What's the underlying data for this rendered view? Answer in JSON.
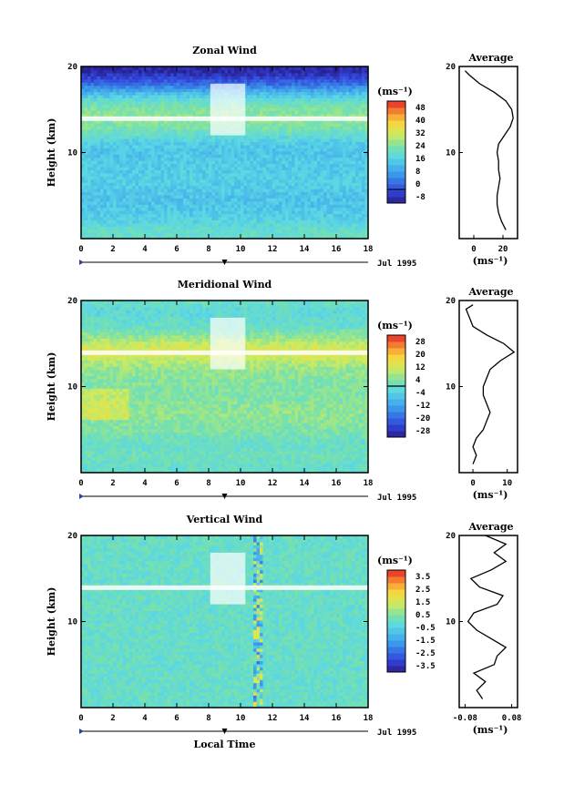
{
  "chart_data": [
    {
      "type": "heatmap",
      "title": "Zonal Wind",
      "ylabel": "Height (km)",
      "xlabel": "",
      "date_label": "Jul 1995",
      "unit_label": "(ms⁻¹)",
      "xlim": [
        0,
        18
      ],
      "ylim": [
        0,
        20
      ],
      "x_ticks": [
        "0",
        "2",
        "4",
        "6",
        "8",
        "10",
        "12",
        "14",
        "16",
        "18"
      ],
      "y_ticks": [
        "10",
        "20"
      ],
      "colorbar": {
        "min": -8,
        "max": 52,
        "labels": [
          "48",
          "40",
          "32",
          "24",
          "16",
          "8",
          "0",
          "-8"
        ],
        "zero_line": 0
      },
      "profile": {
        "title": "Average",
        "xlabel": "(ms⁻¹)",
        "xlim": [
          -10,
          30
        ],
        "x_ticks": [
          "0",
          "20"
        ],
        "y_ticks": [
          "10",
          "20"
        ],
        "heights": [
          1,
          2,
          3,
          4,
          5,
          6,
          7,
          8,
          9,
          10,
          11,
          12,
          13,
          14,
          15,
          16,
          17,
          18,
          19,
          19.5
        ],
        "values": [
          22,
          19,
          17,
          16,
          16,
          17,
          18,
          17,
          17,
          16,
          17,
          21,
          25,
          27,
          26,
          22,
          14,
          4,
          -3,
          -6
        ]
      }
    },
    {
      "type": "heatmap",
      "title": "Meridional Wind",
      "ylabel": "Height (km)",
      "xlabel": "",
      "date_label": "Jul 1995",
      "unit_label": "(ms⁻¹)",
      "xlim": [
        0,
        18
      ],
      "ylim": [
        0,
        20
      ],
      "x_ticks": [
        "0",
        "2",
        "4",
        "6",
        "8",
        "10",
        "12",
        "14",
        "16",
        "18"
      ],
      "y_ticks": [
        "10",
        "20"
      ],
      "colorbar": {
        "min": -28,
        "max": 28,
        "labels": [
          "28",
          "20",
          "12",
          "4",
          "-4",
          "-12",
          "-20",
          "-28"
        ],
        "zero_line": 0
      },
      "profile": {
        "title": "Average",
        "xlabel": "(ms⁻¹)",
        "xlim": [
          -4,
          13
        ],
        "x_ticks": [
          "0",
          "10"
        ],
        "y_ticks": [
          "10",
          "20"
        ],
        "heights": [
          1,
          2,
          3,
          4,
          5,
          6,
          7,
          8,
          9,
          10,
          11,
          12,
          13,
          14,
          15,
          16,
          17,
          18,
          19,
          19.5
        ],
        "values": [
          0,
          1,
          0,
          1,
          3,
          4,
          5,
          4,
          3,
          3,
          4,
          5,
          8,
          12,
          9,
          4,
          0,
          -1,
          -2,
          0
        ]
      }
    },
    {
      "type": "heatmap",
      "title": "Vertical Wind",
      "ylabel": "Height (km)",
      "xlabel": "Local Time",
      "date_label": "Jul 1995",
      "unit_label": "(ms⁻¹)",
      "xlim": [
        0,
        18
      ],
      "ylim": [
        0,
        20
      ],
      "x_ticks": [
        "0",
        "2",
        "4",
        "6",
        "8",
        "10",
        "12",
        "14",
        "16",
        "18"
      ],
      "y_ticks": [
        "10",
        "20"
      ],
      "colorbar": {
        "min": -4,
        "max": 4,
        "labels": [
          "3.5",
          "2.5",
          "1.5",
          "0.5",
          "-0.5",
          "-1.5",
          "-2.5",
          "-3.5"
        ],
        "zero_line": null
      },
      "profile": {
        "title": "Average",
        "xlabel": "(ms⁻¹)",
        "xlim": [
          -0.1,
          0.1
        ],
        "x_ticks": [
          "-0.08",
          "0.08"
        ],
        "y_ticks": [
          "10",
          "20"
        ],
        "heights": [
          1,
          2,
          3,
          4,
          5,
          6,
          7,
          8,
          9,
          10,
          11,
          12,
          13,
          14,
          15,
          16,
          17,
          18,
          19,
          20
        ],
        "values": [
          -0.02,
          -0.04,
          -0.01,
          -0.05,
          0.02,
          0.03,
          0.06,
          0.01,
          -0.04,
          -0.07,
          -0.05,
          0.03,
          0.05,
          -0.03,
          -0.06,
          0.01,
          0.06,
          0.02,
          0.06,
          -0.01
        ]
      }
    }
  ]
}
